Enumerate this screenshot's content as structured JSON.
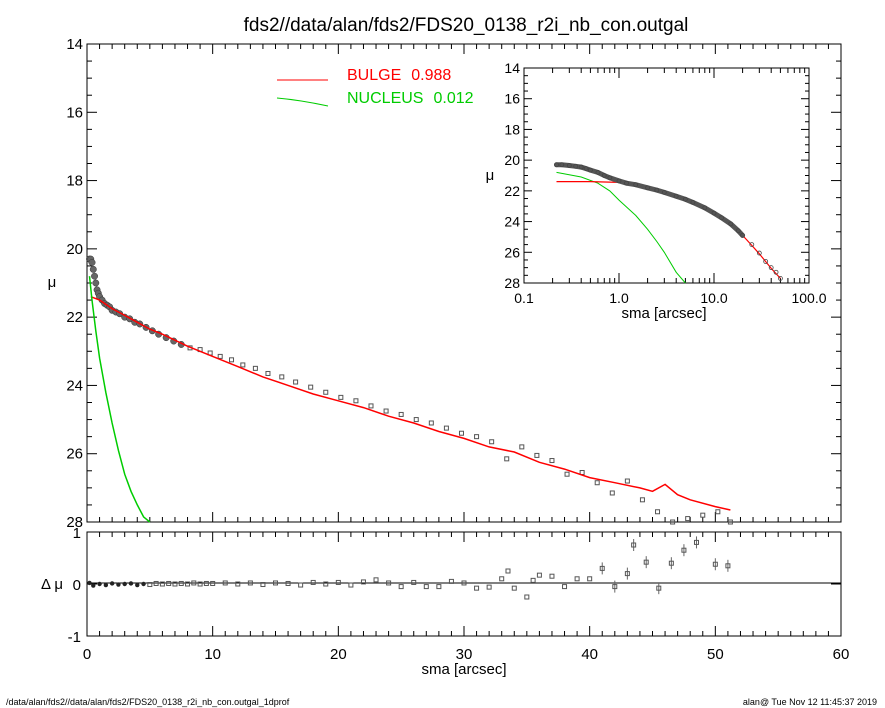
{
  "title": "fds2//data/alan/fds2/FDS20_0138_r2i_nb_con.outgal",
  "footer": {
    "left": "/data/alan/fds2//data/alan/fds2/FDS20_0138_r2i_nb_con.outgal_1dprof",
    "right": "alan@  Tue Nov 12 11:45:37 2019"
  },
  "legend": {
    "bulge": {
      "name": "BULGE",
      "value": "0.988",
      "color": "#ff0000"
    },
    "nucleus": {
      "name": "NUCLEUS",
      "value": "0.012",
      "color": "#00cc00"
    }
  },
  "colors": {
    "bulge": "#ff0000",
    "nucleus": "#00cc00",
    "data": "#555555",
    "frame": "#000000"
  },
  "chart_data": [
    {
      "type": "scatter",
      "panel": "main",
      "ylabel": "μ",
      "xlim": [
        0,
        60
      ],
      "ylim": [
        28,
        14
      ],
      "y_inverted": true,
      "xticks": [
        "0",
        "10",
        "20",
        "30",
        "40",
        "50",
        "60"
      ],
      "yticks": [
        "14",
        "16",
        "18",
        "20",
        "22",
        "24",
        "26",
        "28"
      ],
      "legend_position": "top-center",
      "data_points": {
        "x": [
          0.2,
          0.3,
          0.4,
          0.5,
          0.6,
          0.7,
          0.8,
          0.9,
          1.0,
          1.2,
          1.4,
          1.6,
          1.8,
          2.0,
          2.3,
          2.6,
          3.0,
          3.4,
          3.8,
          4.2,
          4.7,
          5.2,
          5.7,
          6.3,
          6.9,
          7.5,
          8.2,
          9.0,
          9.8,
          10.6,
          11.5,
          12.4,
          13.4,
          14.4,
          15.5,
          16.6,
          17.8,
          19.0,
          20.2,
          21.4,
          22.6,
          23.8,
          25.0,
          26.2,
          27.4,
          28.6,
          29.8,
          31.0,
          32.2,
          33.4,
          34.6,
          35.8,
          37.0,
          38.2,
          39.4,
          40.6,
          41.8,
          43.0,
          44.2,
          45.4,
          46.6,
          47.8,
          49.0,
          50.2,
          51.2
        ],
        "y": [
          20.3,
          20.3,
          20.4,
          20.6,
          20.8,
          21.0,
          21.2,
          21.3,
          21.4,
          21.5,
          21.6,
          21.65,
          21.7,
          21.8,
          21.85,
          21.9,
          22.0,
          22.05,
          22.15,
          22.2,
          22.3,
          22.4,
          22.5,
          22.6,
          22.7,
          22.8,
          22.9,
          22.95,
          23.05,
          23.15,
          23.25,
          23.4,
          23.5,
          23.65,
          23.75,
          23.9,
          24.05,
          24.2,
          24.35,
          24.45,
          24.6,
          24.75,
          24.85,
          25.0,
          25.1,
          25.25,
          25.4,
          25.5,
          25.65,
          26.15,
          25.8,
          26.05,
          26.2,
          26.6,
          26.55,
          26.85,
          27.15,
          26.8,
          27.35,
          27.7,
          28.0,
          27.9,
          27.8,
          27.7,
          28.0
        ]
      },
      "series": [
        {
          "name": "BULGE",
          "color": "#ff0000",
          "x": [
            0.3,
            1,
            2,
            3,
            4,
            5,
            6,
            8,
            10,
            12,
            14,
            16,
            18,
            20,
            22,
            24,
            26,
            28,
            30,
            32,
            34,
            36,
            38,
            40,
            42,
            44,
            45,
            46,
            47,
            48,
            50,
            51.2
          ],
          "y": [
            21.4,
            21.5,
            21.75,
            21.95,
            22.15,
            22.35,
            22.5,
            22.85,
            23.15,
            23.45,
            23.75,
            24.0,
            24.25,
            24.45,
            24.65,
            24.9,
            25.1,
            25.35,
            25.55,
            25.8,
            25.95,
            26.25,
            26.45,
            26.7,
            26.85,
            27.0,
            27.1,
            26.9,
            27.2,
            27.35,
            27.55,
            27.65
          ]
        },
        {
          "name": "NUCLEUS",
          "color": "#00cc00",
          "x": [
            0.2,
            0.4,
            0.7,
            1.0,
            1.5,
            2.0,
            2.5,
            3.0,
            3.5,
            4.0,
            4.5,
            5.0
          ],
          "y": [
            20.8,
            21.5,
            22.4,
            23.2,
            24.2,
            25.1,
            25.9,
            26.6,
            27.1,
            27.5,
            27.85,
            28.1
          ]
        }
      ]
    },
    {
      "type": "scatter",
      "panel": "residual",
      "ylabel": "Δ μ",
      "xlabel": "sma [arcsec]",
      "xlim": [
        0,
        60
      ],
      "ylim": [
        -1,
        1
      ],
      "xticks": [
        "0",
        "10",
        "20",
        "30",
        "40",
        "50",
        "60"
      ],
      "yticks": [
        "1",
        "0",
        "-1"
      ],
      "data_points": {
        "x": [
          0.2,
          0.5,
          1.0,
          1.5,
          2.0,
          2.5,
          3.0,
          3.5,
          4.0,
          4.5,
          5.0,
          5.5,
          6.0,
          6.5,
          7.0,
          7.5,
          8.0,
          8.5,
          9.0,
          9.5,
          10,
          11,
          12,
          13,
          14,
          15,
          16,
          17,
          18,
          19,
          20,
          21,
          22,
          23,
          24,
          25,
          26,
          27,
          28,
          29,
          30,
          31,
          32,
          33,
          33.5,
          34,
          35,
          35.5,
          36,
          37,
          38,
          39,
          40,
          41,
          42,
          43,
          43.5,
          44.5,
          45.5,
          46.5,
          47.5,
          48.5,
          50,
          51
        ],
        "y": [
          0.02,
          -0.03,
          0.0,
          -0.02,
          0.01,
          -0.01,
          0.0,
          0.01,
          -0.02,
          0.0,
          -0.01,
          0.01,
          0.0,
          0.01,
          0.0,
          0.01,
          0.0,
          0.02,
          0.0,
          0.01,
          0.01,
          0.02,
          0.0,
          0.02,
          -0.01,
          0.02,
          0.01,
          -0.02,
          0.03,
          0.0,
          0.03,
          -0.02,
          0.04,
          0.08,
          0.02,
          -0.05,
          0.03,
          -0.05,
          -0.05,
          0.05,
          0.02,
          -0.08,
          -0.06,
          0.1,
          0.25,
          -0.08,
          -0.25,
          0.07,
          0.17,
          0.15,
          -0.05,
          0.1,
          0.1,
          0.3,
          -0.05,
          0.2,
          0.75,
          0.42,
          -0.08,
          0.4,
          0.65,
          0.8,
          0.38,
          0.35
        ]
      }
    },
    {
      "type": "scatter",
      "panel": "inset",
      "ylabel": "μ",
      "xlabel": "sma [arcsec]",
      "x_scale": "log",
      "xlim": [
        0.1,
        100.0
      ],
      "ylim": [
        28,
        14
      ],
      "y_inverted": true,
      "xticks": [
        "0.1",
        "1.0",
        "10.0",
        "100.0"
      ],
      "yticks": [
        "14",
        "16",
        "18",
        "20",
        "22",
        "24",
        "26",
        "28"
      ],
      "data_points": {
        "x": [
          0.22,
          0.25,
          0.3,
          0.35,
          0.4,
          0.45,
          0.5,
          0.6,
          0.7,
          0.8,
          1.0,
          1.2,
          1.5,
          2.0,
          2.5,
          3.0,
          4.0,
          5.0,
          6.0,
          8.0,
          10.0,
          12.0,
          15.0,
          18.0,
          20.0,
          25.0,
          30.0,
          35.0,
          40.0,
          45.0,
          50.0
        ],
        "y": [
          20.3,
          20.3,
          20.35,
          20.4,
          20.45,
          20.55,
          20.65,
          20.8,
          21.0,
          21.15,
          21.35,
          21.5,
          21.6,
          21.8,
          21.95,
          22.1,
          22.35,
          22.55,
          22.75,
          23.1,
          23.45,
          23.75,
          24.15,
          24.6,
          24.9,
          25.5,
          26.05,
          26.6,
          27.0,
          27.3,
          27.7
        ]
      },
      "series": [
        {
          "name": "BULGE",
          "color": "#ff0000",
          "x": [
            0.22,
            0.5,
            1.0,
            1.5,
            2.0,
            3.0,
            4.0,
            5.0,
            6.0,
            8.0,
            10.0,
            12.0,
            15.0,
            20.0,
            25.0,
            30.0,
            40.0,
            50.0
          ],
          "y": [
            21.4,
            21.4,
            21.45,
            21.6,
            21.8,
            22.1,
            22.35,
            22.55,
            22.75,
            23.1,
            23.45,
            23.75,
            24.15,
            24.9,
            25.55,
            26.1,
            27.05,
            27.7
          ]
        },
        {
          "name": "NUCLEUS",
          "color": "#00cc00",
          "x": [
            0.22,
            0.4,
            0.6,
            0.8,
            1.0,
            1.5,
            2.0,
            2.5,
            3.0,
            4.0,
            5.0
          ],
          "y": [
            20.8,
            21.1,
            21.5,
            22.0,
            22.6,
            23.6,
            24.5,
            25.3,
            26.0,
            27.3,
            28.1
          ]
        }
      ]
    }
  ]
}
